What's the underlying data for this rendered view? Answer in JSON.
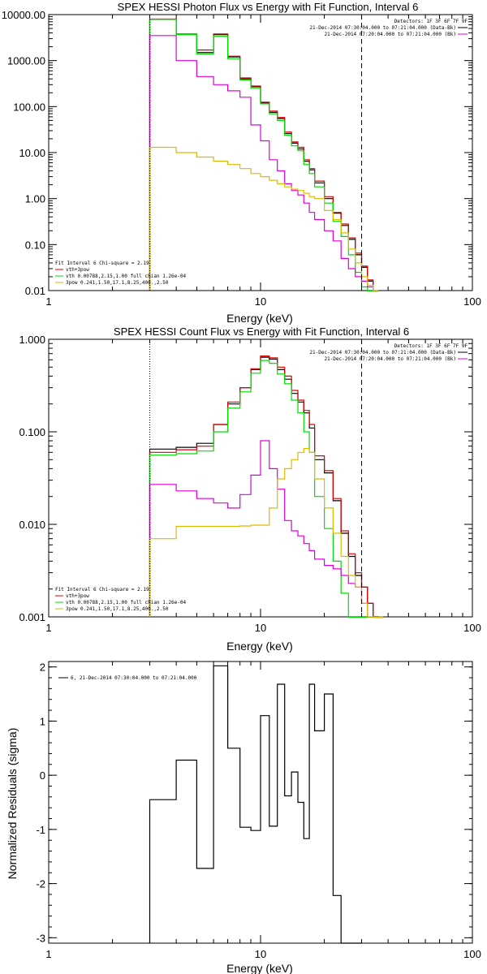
{
  "chart_data": [
    {
      "type": "line",
      "title": "SPEX HESSI Photon Flux vs Energy with Fit Function, Interval 6",
      "xlabel": "Energy (keV)",
      "ylabel": "",
      "xscale": "log",
      "yscale": "log",
      "xlim": [
        1,
        100
      ],
      "ylim": [
        0.01,
        10000
      ],
      "x_ticks": [
        "1",
        "10",
        "100"
      ],
      "y_ticks": [
        "10000.00",
        "1000.00",
        "100.00",
        "10.00",
        "1.00",
        "0.10",
        "0.01"
      ],
      "x_edges": [
        3,
        4,
        5,
        6,
        7,
        8,
        9,
        10,
        11,
        12,
        13,
        14,
        15,
        16,
        17,
        18,
        20,
        22,
        24,
        26,
        28,
        30,
        32,
        34,
        36
      ],
      "series": [
        {
          "name": "",
          "color": "#000000",
          "values": [
            7900,
            3700,
            1500,
            3700,
            1200,
            400,
            270,
            120,
            75,
            55,
            26,
            16,
            12,
            6.5,
            4.2,
            2.2,
            1.0,
            0.48,
            0.26,
            0.13,
            0.06,
            0.032,
            0.016,
            0.009
          ]
        },
        {
          "name": "",
          "color": "#dd0000",
          "values": [
            8000,
            3800,
            1700,
            3800,
            1250,
            420,
            280,
            125,
            80,
            58,
            28,
            17,
            13,
            7,
            4.5,
            2.4,
            1.1,
            0.5,
            0.28,
            0.14,
            0.065,
            0.034,
            0.017,
            0.009
          ]
        },
        {
          "name": "",
          "color": "#00dd00",
          "values": [
            7900,
            3700,
            1400,
            3400,
            1100,
            380,
            250,
            115,
            70,
            50,
            24,
            14,
            11,
            5.5,
            3.5,
            1.8,
            0.8,
            0.32,
            0.15,
            0.06,
            0.025,
            0.012,
            0.008,
            0.008
          ]
        },
        {
          "name": "",
          "color": "#dd00dd",
          "values": [
            3500,
            1000,
            450,
            300,
            220,
            160,
            40,
            18,
            7,
            4,
            2.1,
            1.5,
            1.2,
            0.8,
            0.5,
            0.35,
            0.2,
            0.12,
            0.05,
            0.03,
            0.02,
            0.016,
            0.012,
            0.01
          ]
        },
        {
          "name": "",
          "color": "#ddbb00",
          "values": [
            13,
            10,
            8,
            6.5,
            5.5,
            4.5,
            3.5,
            3.0,
            2.5,
            2.1,
            1.8,
            1.6,
            1.5,
            1.3,
            1.1,
            1.0,
            0.55,
            0.35,
            0.18,
            0.08,
            0.04,
            0.02,
            0.013,
            0.01
          ]
        }
      ],
      "markers": {
        "dotted_x": 3,
        "dashed_x": 30
      },
      "legend_topright": {
        "detectors": "Detectors: 1F 3F 6F 7F 9F",
        "entries": [
          {
            "text": "21-Dec-2014 07:30:04.000 to 07:21:04.000 (Data-Bk)",
            "color": "#000000"
          },
          {
            "text": "21-Dec-2014 07:20:04.000 to 07:21:04.000 (Bk)",
            "color": "#dd00dd"
          }
        ]
      },
      "legend_bottomleft": {
        "header": "Fit Interval 6   Chi-square = 2.19",
        "entries": [
          {
            "text": "vth+3pow",
            "color": "#dd0000"
          },
          {
            "text": "vth 0.00788,2.15,1.00  full chian 1.26e-04",
            "color": "#00dd00"
          },
          {
            "text": "3pow 0.241,1.50,17.1,8.25,400.,2.50",
            "color": "#ddbb00"
          }
        ]
      }
    },
    {
      "type": "line",
      "title": "SPEX HESSI Count Flux vs Energy with Fit Function, Interval 6",
      "xlabel": "Energy (keV)",
      "ylabel": "",
      "xscale": "log",
      "yscale": "log",
      "xlim": [
        1,
        100
      ],
      "ylim": [
        0.001,
        1
      ],
      "x_ticks": [
        "1",
        "10",
        "100"
      ],
      "y_ticks": [
        "1.000",
        "0.100",
        "0.010",
        "0.001"
      ],
      "x_edges": [
        3,
        4,
        5,
        6,
        7,
        8,
        9,
        10,
        11,
        12,
        13,
        14,
        15,
        16,
        17,
        18,
        20,
        22,
        24,
        26,
        28,
        30,
        32,
        34,
        36,
        38
      ],
      "series": [
        {
          "name": "",
          "color": "#000000",
          "values": [
            0.065,
            0.068,
            0.075,
            0.12,
            0.2,
            0.3,
            0.47,
            0.64,
            0.61,
            0.47,
            0.37,
            0.26,
            0.21,
            0.16,
            0.11,
            0.05,
            0.036,
            0.018,
            0.008,
            0.0045,
            0.0028,
            0.0021,
            0.0014,
            0.001,
            0.0009
          ]
        },
        {
          "name": "",
          "color": "#dd0000",
          "values": [
            0.06,
            0.064,
            0.07,
            0.12,
            0.21,
            0.3,
            0.48,
            0.66,
            0.63,
            0.5,
            0.4,
            0.28,
            0.22,
            0.17,
            0.12,
            0.055,
            0.038,
            0.019,
            0.0085,
            0.0048,
            0.003,
            0.0021,
            0.0014,
            0.001,
            0.0009
          ]
        },
        {
          "name": "",
          "color": "#00dd00",
          "values": [
            0.056,
            0.058,
            0.062,
            0.1,
            0.18,
            0.27,
            0.43,
            0.59,
            0.55,
            0.42,
            0.33,
            0.22,
            0.16,
            0.1,
            0.06,
            0.02,
            0.009,
            0.004,
            0.0018,
            0.0009,
            0.0009,
            0.0009,
            0.0009,
            0.0009,
            0.0009
          ]
        },
        {
          "name": "",
          "color": "#dd00dd",
          "values": [
            0.027,
            0.023,
            0.019,
            0.017,
            0.015,
            0.021,
            0.034,
            0.08,
            0.04,
            0.024,
            0.011,
            0.0085,
            0.0075,
            0.0062,
            0.0052,
            0.0042,
            0.0036,
            0.0033,
            0.0028,
            0.0023,
            0.0021,
            0.0014,
            0.001,
            0.0009,
            0.0009
          ]
        },
        {
          "name": "",
          "color": "#ddbb00",
          "values": [
            0.007,
            0.0095,
            0.0095,
            0.0095,
            0.0095,
            0.0096,
            0.0098,
            0.0098,
            0.015,
            0.031,
            0.04,
            0.05,
            0.06,
            0.066,
            0.06,
            0.031,
            0.015,
            0.008,
            0.0045,
            0.0028,
            0.0021,
            0.0014,
            0.001,
            0.0009,
            0.0009
          ]
        }
      ],
      "markers": {
        "dotted_x": 3,
        "dashed_x": 30
      },
      "legend_topright": {
        "detectors": "Detectors: 1F 3F 6F 7F 9F",
        "entries": [
          {
            "text": "21-Dec-2014 07:30:04.000 to 07:21:04.000 (Data-Bk)",
            "color": "#000000"
          },
          {
            "text": "21-Dec-2014 07:20:04.000 to 07:21:04.000 (Bk)",
            "color": "#dd00dd"
          }
        ]
      },
      "legend_bottomleft": {
        "header": "Fit Interval 6   Chi-square = 2.19",
        "entries": [
          {
            "text": "vth+3pow",
            "color": "#dd0000"
          },
          {
            "text": "vth 0.00788,2.15,1.00  full chian 1.26e-04",
            "color": "#00dd00"
          },
          {
            "text": "3pow 0.241,1.50,17.1,8.25,400.,2.50",
            "color": "#ddbb00"
          }
        ]
      }
    },
    {
      "type": "line",
      "title": "",
      "xlabel": "Energy (keV)",
      "ylabel": "Normalized Residuals (sigma)",
      "xscale": "log",
      "yscale": "linear",
      "xlim": [
        1,
        100
      ],
      "ylim": [
        -3.1,
        2.1
      ],
      "x_ticks": [
        "1",
        "10",
        "100"
      ],
      "y_ticks": [
        "2",
        "1",
        "0",
        "-1",
        "-2",
        "-3"
      ],
      "x_edges": [
        3,
        4,
        5,
        6,
        7,
        8,
        9,
        10,
        11,
        12,
        13,
        14,
        15,
        16,
        17,
        18,
        20,
        22,
        24,
        26,
        28,
        30
      ],
      "series": [
        {
          "name": "",
          "color": "#000000",
          "values": [
            -0.45,
            0.28,
            -1.72,
            2.02,
            0.5,
            -0.96,
            -1.02,
            1.1,
            -0.94,
            1.68,
            -0.38,
            0.06,
            -0.5,
            -1.17,
            1.68,
            0.82,
            1.5,
            -2.22,
            -3.2,
            -3.2,
            -3.2
          ]
        }
      ],
      "legend_topleft": {
        "entries": [
          {
            "text": "6, 21-Dec-2014 07:30:04.000 to 07:21:04.000",
            "color": "#000000"
          }
        ]
      }
    }
  ]
}
